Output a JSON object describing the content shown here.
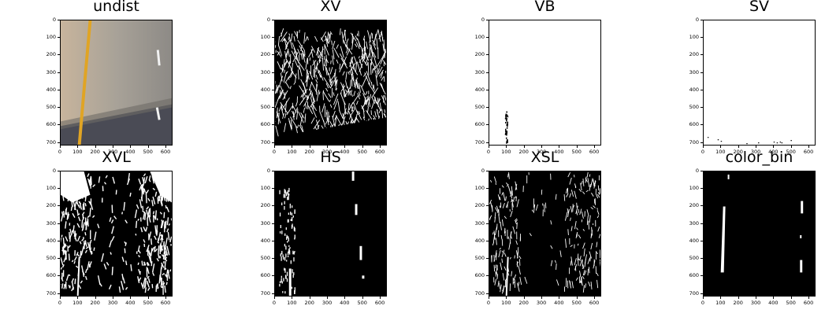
{
  "figure": {
    "panels": [
      {
        "id": "undist",
        "title": "undist",
        "kind": "photo",
        "bg": "#a79f90"
      },
      {
        "id": "xv",
        "title": "XV",
        "kind": "binary-dense-white",
        "bg": "#000000"
      },
      {
        "id": "vb",
        "title": "VB",
        "kind": "binary-sparse",
        "bg": "#ffffff"
      },
      {
        "id": "sv",
        "title": "SV",
        "kind": "binary-sparse",
        "bg": "#ffffff"
      },
      {
        "id": "xvl",
        "title": "XVL",
        "kind": "binary-mixed",
        "bg": "#000000"
      },
      {
        "id": "hs",
        "title": "HS",
        "kind": "binary-lanes",
        "bg": "#000000"
      },
      {
        "id": "xsl",
        "title": "XSL",
        "kind": "binary-mixed",
        "bg": "#000000"
      },
      {
        "id": "color_bin",
        "title": "color_bin",
        "kind": "binary-lanes",
        "bg": "#000000"
      }
    ],
    "x_ticks": [
      "0",
      "100",
      "200",
      "300",
      "400",
      "500",
      "600"
    ],
    "y_ticks": [
      "0",
      "100",
      "200",
      "300",
      "400",
      "500",
      "600",
      "700"
    ],
    "x_range": [
      0,
      640
    ],
    "y_range": [
      0,
      720
    ]
  }
}
